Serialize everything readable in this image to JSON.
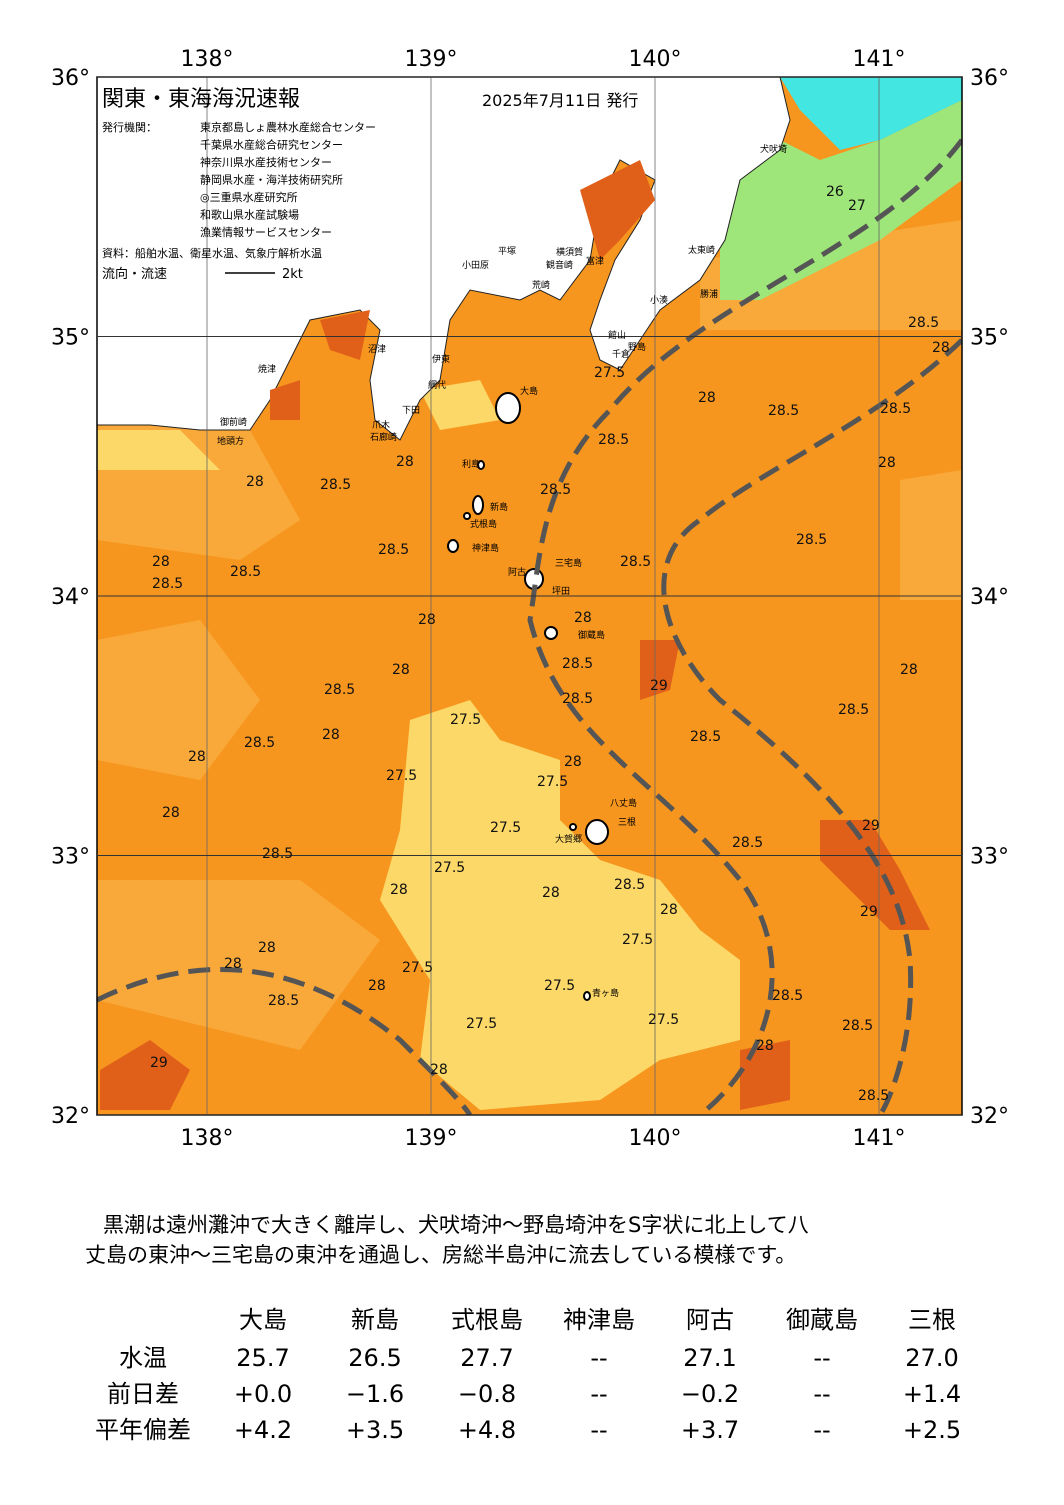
{
  "header": {
    "title": "関東・東海海況速報",
    "date": "2025年7月11日 発行",
    "issuer_label": "発行機関：",
    "issuers": [
      "東京都島しょ農林水産総合センター",
      "千葉県水産総合研究センター",
      "神奈川県水産技術センター",
      "静岡県水産・海洋技術研究所",
      "◎三重県水産研究所",
      "和歌山県水産試験場",
      "漁業情報サービスセンター"
    ],
    "source": "資料：船舶水温、衛星水温、気象庁解析水温",
    "current_legend": "流向・流速",
    "current_scale": "2kt"
  },
  "map": {
    "lon_ticks": [
      {
        "value": 138,
        "label": "138°"
      },
      {
        "value": 139,
        "label": "139°"
      },
      {
        "value": 140,
        "label": "140°"
      },
      {
        "value": 141,
        "label": "141°"
      }
    ],
    "lat_ticks": [
      {
        "value": 36,
        "label": "36°"
      },
      {
        "value": 35,
        "label": "35°"
      },
      {
        "value": 34,
        "label": "34°"
      },
      {
        "value": 33,
        "label": "33°"
      },
      {
        "value": 32,
        "label": "32°"
      }
    ],
    "place_names": [
      "犬吠埼",
      "太東崎",
      "勝浦",
      "小湊",
      "野島",
      "館山",
      "千倉",
      "富津",
      "観音崎",
      "横須賀",
      "荒崎",
      "平塚",
      "小田原",
      "伊東",
      "網代",
      "下田",
      "石廊崎",
      "爪木",
      "沼津",
      "焼津",
      "御前崎",
      "地頭方",
      "利島",
      "新島",
      "式根島",
      "神津島",
      "三宅島",
      "阿古",
      "坪田",
      "御蔵島",
      "八丈島",
      "三根",
      "大賀郷",
      "青ヶ島",
      "大島"
    ],
    "contour_labels": [
      27,
      26,
      28.5,
      28,
      28.5,
      28,
      28.5,
      28,
      27.5,
      28.5,
      28.5,
      28,
      28.5,
      28,
      28.5,
      28,
      28.5,
      28.5,
      28.5,
      28.5,
      28,
      28.5,
      28,
      28,
      28.5,
      29,
      28.5,
      28,
      28.5,
      28.5,
      27.5,
      28,
      28.5,
      28,
      27.5,
      28,
      27.5,
      28,
      27.5,
      28.5,
      27.5,
      28,
      28.5,
      28,
      29,
      29,
      28.5,
      28,
      28,
      28,
      27.5,
      27.5,
      27.5,
      28.5,
      28,
      27.5,
      27.5,
      28.5,
      28.5,
      28,
      29,
      28,
      28.5
    ]
  },
  "summary": [
    "黒潮は遠州灘沖で大きく離岸し、犬吠埼沖～野島埼沖をS字状に北上して八",
    "丈島の東沖～三宅島の東沖を通過し、房総半島沖に流去している模様です。"
  ],
  "table": {
    "columns": [
      "大島",
      "新島",
      "式根島",
      "神津島",
      "阿古",
      "御蔵島",
      "三根"
    ],
    "rows": [
      {
        "label": "水温",
        "values": [
          "25.7",
          "26.5",
          "27.7",
          "--",
          "27.1",
          "--",
          "27.0"
        ]
      },
      {
        "label": "前日差",
        "values": [
          "+0.0",
          "−1.6",
          "−0.8",
          "--",
          "−0.2",
          "--",
          "+1.4"
        ]
      },
      {
        "label": "平年偏差",
        "values": [
          "+4.2",
          "+3.5",
          "+4.8",
          "--",
          "+3.7",
          "--",
          "+2.5"
        ]
      }
    ]
  }
}
